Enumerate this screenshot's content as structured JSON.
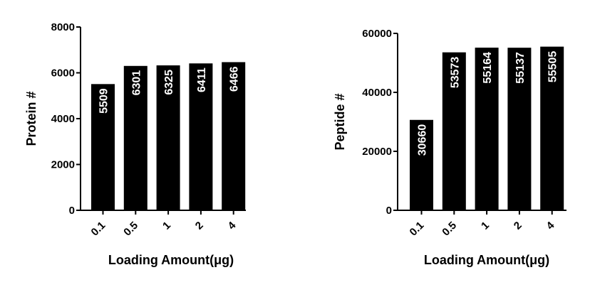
{
  "chart_data": [
    {
      "type": "bar",
      "categories": [
        "0.1",
        "0.5",
        "1",
        "2",
        "4"
      ],
      "values": [
        5509,
        6301,
        6325,
        6411,
        6466
      ],
      "data_labels": [
        "5509",
        "6301",
        "6325",
        "6411",
        "6466"
      ],
      "xlabel": "Loading Amount(μg)",
      "ylabel": "Protein #",
      "ylim": [
        0,
        8000
      ],
      "yticks": [
        "0",
        "2000",
        "4000",
        "6000",
        "8000"
      ],
      "grid": false,
      "bar_color": "#000000",
      "label_color": "#ffffff"
    },
    {
      "type": "bar",
      "categories": [
        "0.1",
        "0.5",
        "1",
        "2",
        "4"
      ],
      "values": [
        30660,
        53573,
        55164,
        55137,
        55505
      ],
      "data_labels": [
        "30660",
        "53573",
        "55164",
        "55137",
        "55505"
      ],
      "xlabel": "Loading Amount(μg)",
      "ylabel": "Peptide #",
      "ylim": [
        0,
        60000
      ],
      "yticks": [
        "0",
        "20000",
        "40000",
        "60000"
      ],
      "grid": false,
      "bar_color": "#000000",
      "label_color": "#ffffff"
    }
  ]
}
